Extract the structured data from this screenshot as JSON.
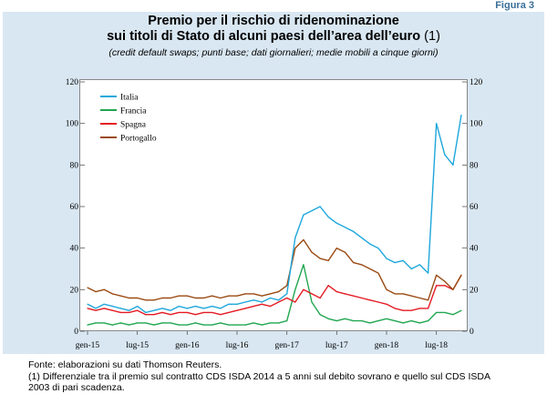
{
  "figure_label": "Figura 3",
  "title": {
    "line1": "Premio per il rischio di ridenominazione",
    "line2_main": "sui titoli di Stato di alcuni paesi dell’area dell’euro",
    "line2_note": " (1)",
    "subtitle": "(credit default swaps; punti base; dati giornalieri; medie mobili a cinque giorni)"
  },
  "footnotes": {
    "source": "Fonte: elaborazioni su dati Thomson Reuters.",
    "note1_line1": "(1) Differenziale tra il premio sul contratto CDS ISDA 2014 a 5 anni sul debito sovrano e quello sul CDS ISDA",
    "note1_line2": "2003 di pari scadenza."
  },
  "colors": {
    "panel_bg": "#d9e7f2",
    "Italia": "#1ea7dc",
    "Francia": "#21a651",
    "Spagna": "#e31b23",
    "Portogallo": "#9a4a12"
  },
  "chart_data": {
    "type": "line",
    "x_tick_labels": [
      "gen-15",
      "lug-15",
      "gen-16",
      "lug-16",
      "gen-17",
      "lug-17",
      "gen-18",
      "lug-18"
    ],
    "x_start": "2015-01",
    "x_end": "2018-10",
    "ylim": [
      0,
      120
    ],
    "y_ticks": [
      0,
      20,
      40,
      60,
      80,
      100,
      120
    ],
    "y_axis_left": true,
    "y_axis_right": true,
    "grid": false,
    "legend_position": "top-left",
    "x_month_index": [
      0,
      1,
      2,
      3,
      4,
      5,
      6,
      7,
      8,
      9,
      10,
      11,
      12,
      13,
      14,
      15,
      16,
      17,
      18,
      19,
      20,
      21,
      22,
      23,
      24,
      25,
      26,
      27,
      28,
      29,
      30,
      31,
      32,
      33,
      34,
      35,
      36,
      37,
      38,
      39,
      40,
      41,
      42,
      43,
      44,
      45
    ],
    "series": [
      {
        "name": "Italia",
        "color_key": "Italia",
        "values": [
          13,
          11,
          13,
          12,
          11,
          10,
          12,
          9,
          10,
          11,
          10,
          12,
          11,
          12,
          11,
          12,
          11,
          13,
          13,
          14,
          15,
          14,
          16,
          15,
          18,
          45,
          56,
          58,
          60,
          55,
          52,
          50,
          48,
          45,
          42,
          40,
          35,
          33,
          34,
          30,
          32,
          28,
          100,
          85,
          80,
          104
        ]
      },
      {
        "name": "Francia",
        "color_key": "Francia",
        "values": [
          3,
          4,
          4,
          3,
          4,
          3,
          4,
          4,
          3,
          4,
          4,
          3,
          3,
          4,
          3,
          3,
          4,
          3,
          3,
          3,
          4,
          3,
          4,
          4,
          5,
          20,
          32,
          14,
          8,
          6,
          5,
          6,
          5,
          5,
          4,
          5,
          6,
          5,
          4,
          5,
          4,
          5,
          9,
          9,
          8,
          10
        ]
      },
      {
        "name": "Spagna",
        "color_key": "Spagna",
        "values": [
          11,
          10,
          11,
          10,
          9,
          9,
          10,
          8,
          8,
          9,
          8,
          9,
          9,
          8,
          9,
          9,
          8,
          9,
          10,
          11,
          12,
          13,
          12,
          14,
          16,
          14,
          20,
          18,
          16,
          22,
          19,
          18,
          17,
          16,
          15,
          14,
          13,
          11,
          10,
          10,
          11,
          11,
          22,
          22,
          20,
          27
        ]
      },
      {
        "name": "Portogallo",
        "color_key": "Portogallo",
        "values": [
          21,
          19,
          20,
          18,
          17,
          16,
          16,
          15,
          15,
          16,
          16,
          17,
          17,
          16,
          16,
          17,
          16,
          17,
          17,
          18,
          18,
          17,
          18,
          19,
          22,
          40,
          44,
          38,
          35,
          34,
          40,
          38,
          33,
          32,
          30,
          28,
          20,
          18,
          18,
          17,
          16,
          15,
          27,
          24,
          20,
          27
        ]
      }
    ]
  }
}
